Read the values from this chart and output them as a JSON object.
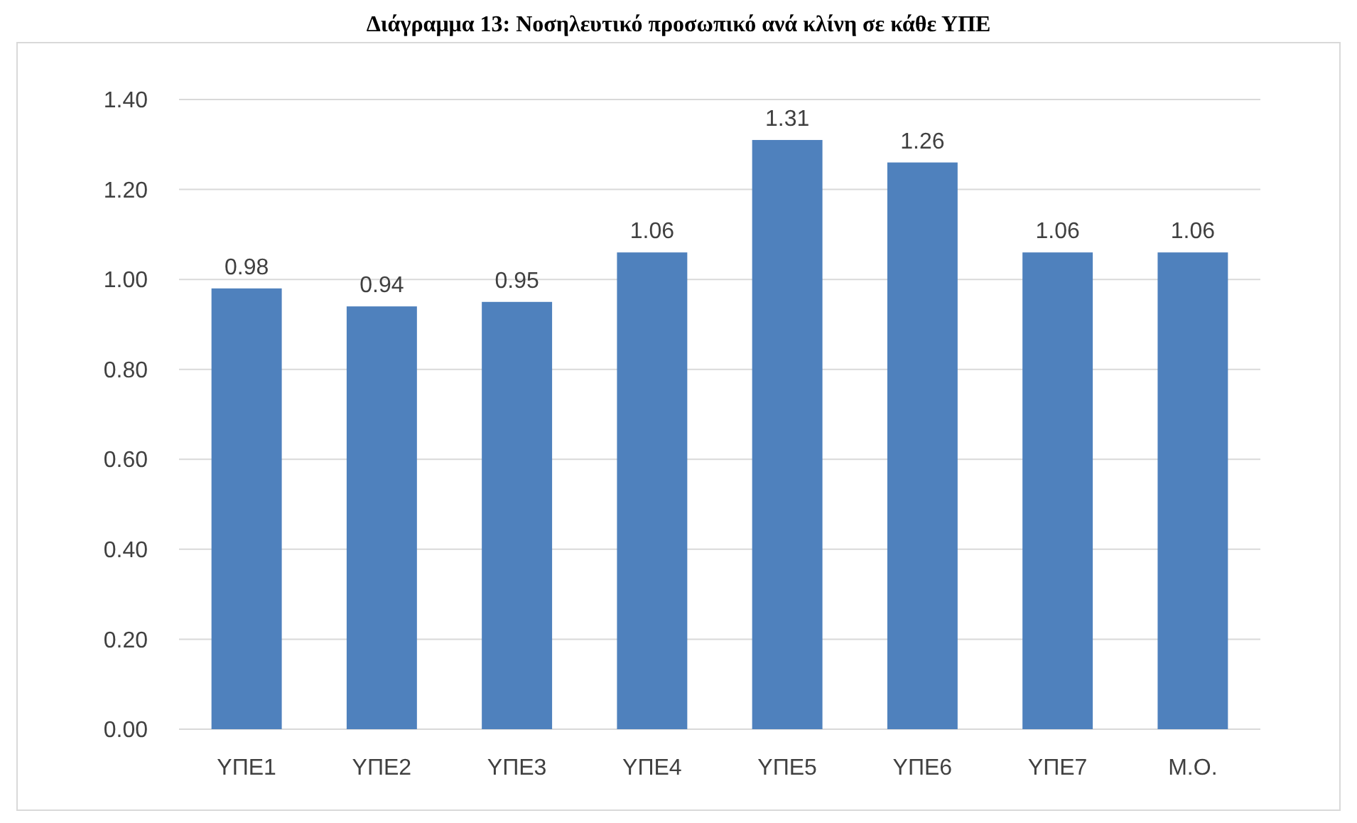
{
  "chart_data": {
    "type": "bar",
    "title": "Διάγραμμα 13: Νοσηλευτικό προσωπικό ανά κλίνη σε κάθε ΥΠΕ",
    "categories": [
      "ΥΠΕ1",
      "ΥΠΕ2",
      "ΥΠΕ3",
      "ΥΠΕ4",
      "ΥΠΕ5",
      "ΥΠΕ6",
      "ΥΠΕ7",
      "Μ.Ο."
    ],
    "values": [
      0.98,
      0.94,
      0.95,
      1.06,
      1.31,
      1.26,
      1.06,
      1.06
    ],
    "color": "#4f81bd",
    "ylim": [
      0,
      1.4
    ],
    "yticks": [
      {
        "value": 0,
        "label": "0.00"
      },
      {
        "value": 0.2,
        "label": "0.20"
      },
      {
        "value": 0.4,
        "label": "0.40"
      },
      {
        "value": 0.6,
        "label": "0.60"
      },
      {
        "value": 0.8,
        "label": "0.80"
      },
      {
        "value": 1,
        "label": "1.00"
      },
      {
        "value": 1.2,
        "label": "1.20"
      },
      {
        "value": 1.4,
        "label": "1.40"
      }
    ],
    "value_labels": [
      "0.98",
      "0.94",
      "0.95",
      "1.06",
      "1.31",
      "1.26",
      "1.06",
      "1.06"
    ],
    "grid": "y"
  }
}
